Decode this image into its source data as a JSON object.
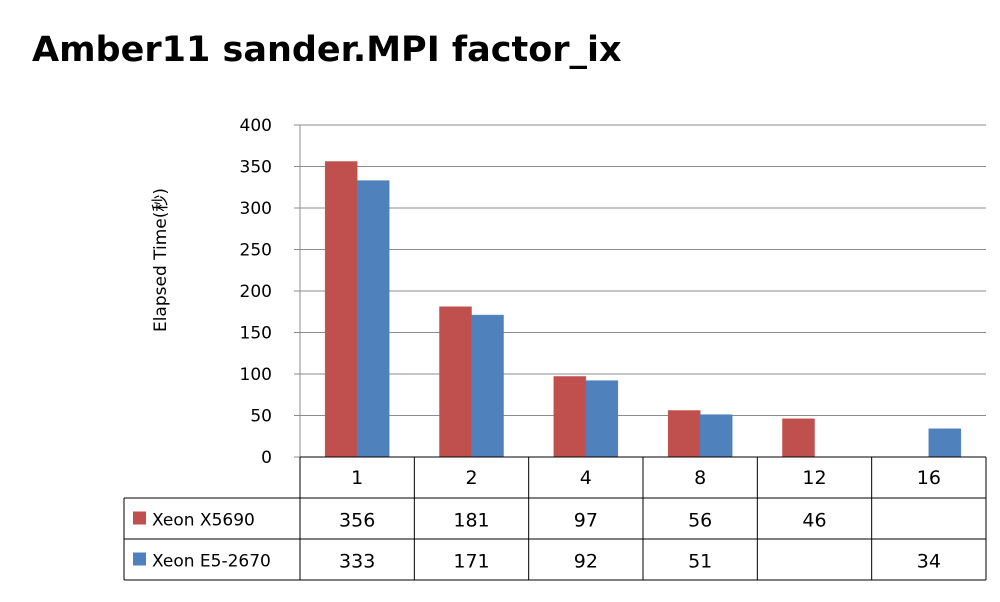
{
  "chart_data": {
    "type": "bar",
    "title": "Amber11 sander.MPI factor_ix",
    "xlabel": "",
    "ylabel": "Elapsed Time(秒)",
    "categories": [
      "1",
      "2",
      "4",
      "8",
      "12",
      "16"
    ],
    "ylim": [
      0,
      400
    ],
    "yticks": [
      0,
      50,
      100,
      150,
      200,
      250,
      300,
      350,
      400
    ],
    "grid": true,
    "legend": "data-table",
    "series": [
      {
        "name": "Xeon X5690",
        "color": "#c0504d",
        "values": [
          356,
          181,
          97,
          56,
          46,
          null
        ]
      },
      {
        "name": "Xeon E5-2670",
        "color": "#4f81bd",
        "values": [
          333,
          171,
          92,
          51,
          null,
          34
        ]
      }
    ]
  }
}
